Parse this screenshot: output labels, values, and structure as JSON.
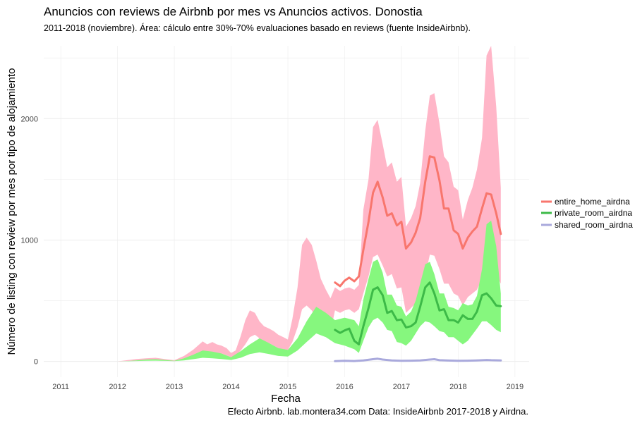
{
  "chart_data": {
    "type": "area",
    "title": "Anuncios con reviews de Airbnb por mes vs Anuncios activos. Donostia",
    "subtitle": "2011-2018 (noviembre). Área: cálculo entre 30%-70% evaluaciones basado en reviews (fuente InsideAirbnb).",
    "xlabel": "Fecha",
    "ylabel": "Número de listing con review por mes por tipo de alojamiento",
    "caption": "Efecto Airbnb. lab.montera34.com Data: InsideAirbnb 2017-2018 y Airdna.",
    "xlim": [
      2010.7,
      2019.25
    ],
    "ylim": [
      -130,
      2600
    ],
    "x_ticks": [
      2011,
      2012,
      2013,
      2014,
      2015,
      2016,
      2017,
      2018,
      2019
    ],
    "y_ticks": [
      0,
      1000,
      2000
    ],
    "grid": true,
    "legend_position": "right",
    "colors": {
      "entire_line": "#f8766d",
      "entire_area": "#ffb6c8",
      "private_line": "#3dba48",
      "private_area": "#86f77e",
      "shared_line": "#a9a9dc",
      "grid": "#ececec"
    },
    "series": [
      {
        "name": "entire_home_airdna",
        "type": "line",
        "x": [
          2015.83,
          2015.92,
          2016.0,
          2016.08,
          2016.17,
          2016.25,
          2016.33,
          2016.42,
          2016.5,
          2016.58,
          2016.67,
          2016.75,
          2016.83,
          2016.92,
          2017.0,
          2017.08,
          2017.17,
          2017.25,
          2017.33,
          2017.42,
          2017.5,
          2017.58,
          2017.67,
          2017.75,
          2017.83,
          2017.92,
          2018.0,
          2018.08,
          2018.17,
          2018.25,
          2018.33,
          2018.42,
          2018.5,
          2018.58,
          2018.67,
          2018.75
        ],
        "y": [
          650,
          620,
          665,
          690,
          660,
          700,
          920,
          1150,
          1390,
          1480,
          1350,
          1200,
          1220,
          1120,
          1150,
          930,
          980,
          1060,
          1180,
          1480,
          1690,
          1680,
          1490,
          1260,
          1260,
          1080,
          1050,
          930,
          1020,
          1070,
          1110,
          1260,
          1385,
          1375,
          1220,
          1050
        ]
      },
      {
        "name": "private_room_airdna",
        "type": "line",
        "x": [
          2015.83,
          2015.92,
          2016.0,
          2016.08,
          2016.17,
          2016.25,
          2016.33,
          2016.42,
          2016.5,
          2016.58,
          2016.67,
          2016.75,
          2016.83,
          2016.92,
          2017.0,
          2017.08,
          2017.17,
          2017.25,
          2017.33,
          2017.42,
          2017.5,
          2017.58,
          2017.67,
          2017.75,
          2017.83,
          2017.92,
          2018.0,
          2018.08,
          2018.17,
          2018.25,
          2018.33,
          2018.42,
          2018.5,
          2018.58,
          2018.67,
          2018.75
        ],
        "y": [
          260,
          235,
          255,
          270,
          170,
          140,
          290,
          440,
          590,
          610,
          545,
          400,
          415,
          340,
          345,
          280,
          290,
          320,
          450,
          610,
          650,
          560,
          420,
          430,
          340,
          340,
          320,
          380,
          350,
          350,
          410,
          545,
          560,
          520,
          460,
          455
        ]
      },
      {
        "name": "shared_room_airdna",
        "type": "line",
        "x": [
          2015.83,
          2016.0,
          2016.17,
          2016.33,
          2016.5,
          2016.58,
          2016.67,
          2016.83,
          2017.0,
          2017.17,
          2017.33,
          2017.5,
          2017.58,
          2017.67,
          2017.83,
          2018.0,
          2018.17,
          2018.33,
          2018.5,
          2018.58,
          2018.75
        ],
        "y": [
          2,
          5,
          3,
          8,
          18,
          22,
          15,
          8,
          5,
          6,
          8,
          15,
          18,
          10,
          7,
          5,
          6,
          8,
          12,
          10,
          8
        ]
      },
      {
        "name": "entire_home_area",
        "type": "area",
        "fill": "entire_area",
        "x": [
          2011.0,
          2011.5,
          2012.0,
          2012.17,
          2012.33,
          2012.5,
          2012.67,
          2012.83,
          2013.0,
          2013.17,
          2013.33,
          2013.5,
          2013.58,
          2013.67,
          2013.75,
          2013.83,
          2013.92,
          2014.0,
          2014.08,
          2014.17,
          2014.25,
          2014.33,
          2014.42,
          2014.5,
          2014.58,
          2014.67,
          2014.75,
          2014.83,
          2014.92,
          2015.0,
          2015.08,
          2015.17,
          2015.25,
          2015.33,
          2015.42,
          2015.5,
          2015.58,
          2015.67,
          2015.75,
          2015.83,
          2015.92,
          2016.0,
          2016.08,
          2016.17,
          2016.25,
          2016.33,
          2016.42,
          2016.5,
          2016.58,
          2016.67,
          2016.75,
          2016.83,
          2016.92,
          2017.0,
          2017.08,
          2017.17,
          2017.25,
          2017.33,
          2017.42,
          2017.5,
          2017.58,
          2017.67,
          2017.75,
          2017.83,
          2017.92,
          2018.0,
          2018.08,
          2018.17,
          2018.25,
          2018.33,
          2018.42,
          2018.5,
          2018.58,
          2018.67,
          2018.75
        ],
        "ylow": [
          0,
          0,
          0,
          3,
          8,
          10,
          12,
          8,
          5,
          18,
          38,
          60,
          75,
          70,
          55,
          65,
          50,
          35,
          45,
          90,
          140,
          200,
          220,
          190,
          160,
          150,
          130,
          110,
          100,
          95,
          160,
          280,
          430,
          460,
          420,
          360,
          320,
          270,
          240,
          420,
          400,
          420,
          430,
          400,
          430,
          560,
          700,
          860,
          880,
          790,
          700,
          720,
          600,
          610,
          400,
          440,
          480,
          560,
          700,
          880,
          870,
          760,
          640,
          640,
          560,
          540,
          460,
          530,
          560,
          590,
          680,
          820,
          820,
          720,
          640
        ],
        "yhigh": [
          0,
          0,
          0,
          10,
          20,
          25,
          30,
          20,
          10,
          45,
          95,
          165,
          140,
          160,
          140,
          130,
          110,
          70,
          90,
          210,
          340,
          420,
          400,
          330,
          290,
          270,
          250,
          220,
          200,
          180,
          350,
          610,
          960,
          1020,
          960,
          830,
          680,
          590,
          520,
          610,
          580,
          600,
          610,
          590,
          630,
          1250,
          1500,
          1930,
          1990,
          1790,
          1600,
          1640,
          1480,
          1520,
          1110,
          1180,
          1280,
          1470,
          1900,
          2190,
          2210,
          1960,
          1690,
          1640,
          1440,
          1410,
          1170,
          1330,
          1430,
          1580,
          1840,
          2520,
          2600,
          2100,
          1430
        ]
      },
      {
        "name": "private_room_area",
        "type": "area",
        "fill": "private_area",
        "x": [
          2011.0,
          2012.0,
          2012.17,
          2012.33,
          2012.5,
          2012.67,
          2012.83,
          2013.0,
          2013.17,
          2013.33,
          2013.5,
          2013.67,
          2013.83,
          2014.0,
          2014.17,
          2014.33,
          2014.5,
          2014.67,
          2014.83,
          2015.0,
          2015.17,
          2015.33,
          2015.5,
          2015.67,
          2015.83,
          2016.0,
          2016.17,
          2016.25,
          2016.33,
          2016.42,
          2016.5,
          2016.58,
          2016.67,
          2016.75,
          2016.83,
          2016.92,
          2017.0,
          2017.08,
          2017.17,
          2017.25,
          2017.33,
          2017.42,
          2017.5,
          2017.58,
          2017.67,
          2017.75,
          2017.83,
          2017.92,
          2018.0,
          2018.08,
          2018.17,
          2018.25,
          2018.33,
          2018.42,
          2018.5,
          2018.58,
          2018.67,
          2018.75
        ],
        "ylow": [
          0,
          0,
          1,
          3,
          5,
          6,
          4,
          2,
          8,
          18,
          30,
          25,
          20,
          12,
          30,
          60,
          75,
          60,
          45,
          40,
          90,
          160,
          230,
          200,
          150,
          130,
          100,
          70,
          170,
          280,
          340,
          360,
          320,
          260,
          250,
          160,
          150,
          130,
          170,
          230,
          290,
          330,
          320,
          290,
          250,
          240,
          200,
          200,
          170,
          140,
          170,
          220,
          270,
          330,
          330,
          300,
          260,
          240
        ],
        "yhigh": [
          0,
          0,
          3,
          8,
          15,
          18,
          12,
          5,
          25,
          55,
          90,
          80,
          65,
          35,
          85,
          140,
          190,
          150,
          110,
          95,
          190,
          330,
          450,
          400,
          340,
          360,
          340,
          290,
          510,
          680,
          820,
          840,
          730,
          550,
          550,
          460,
          450,
          370,
          410,
          500,
          640,
          800,
          820,
          720,
          560,
          560,
          450,
          440,
          420,
          480,
          460,
          470,
          540,
          760,
          1130,
          1160,
          950,
          560
        ]
      }
    ]
  }
}
